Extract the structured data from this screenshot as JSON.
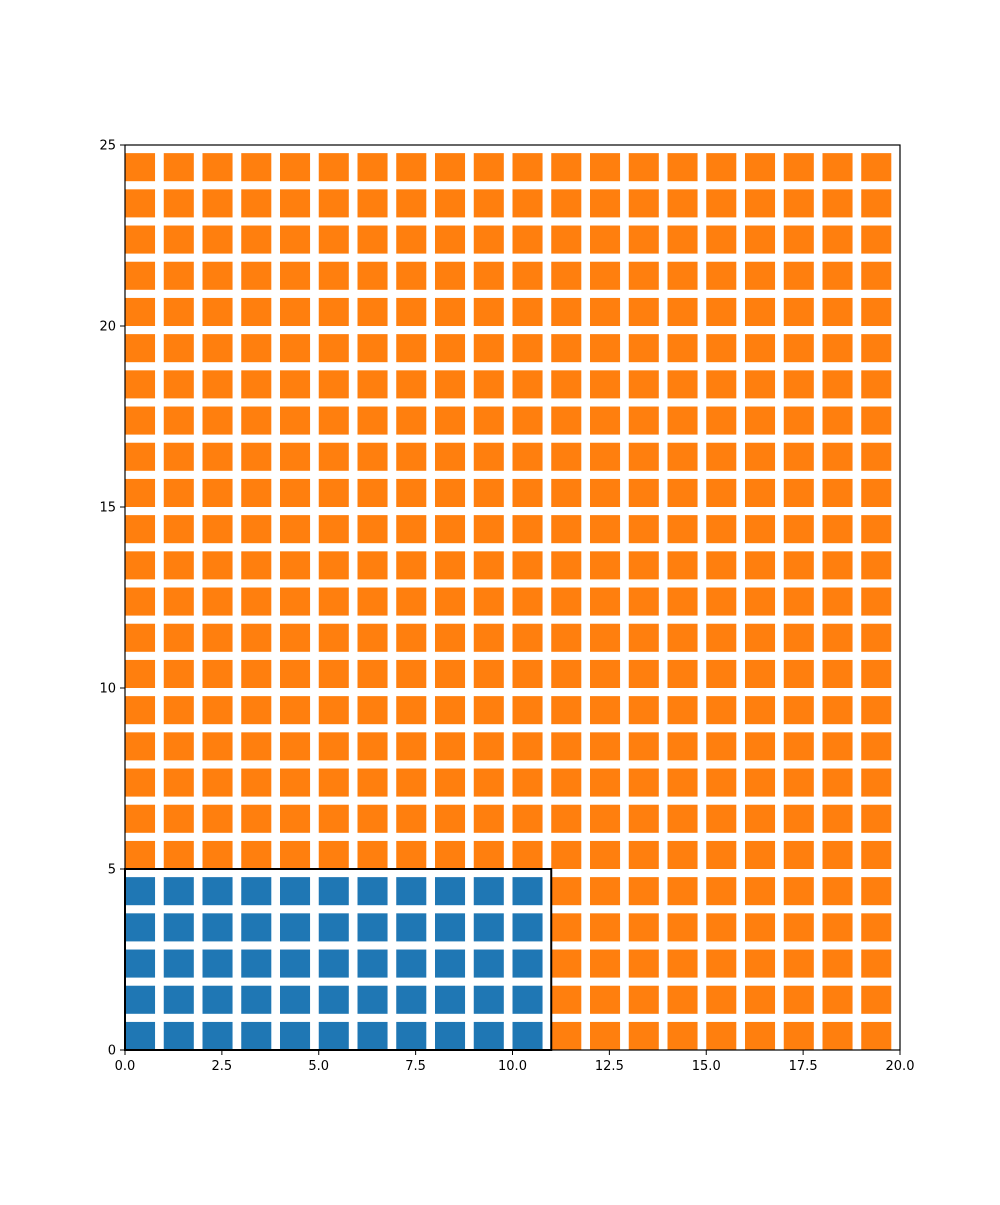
{
  "chart_data": {
    "type": "heatmap",
    "title": "",
    "xlabel": "",
    "ylabel": "",
    "xlim": [
      0,
      20
    ],
    "ylim": [
      0,
      25
    ],
    "xticks": [
      "0.0",
      "2.5",
      "5.0",
      "7.5",
      "10.0",
      "12.5",
      "15.0",
      "17.5",
      "20.0"
    ],
    "yticks": [
      "0",
      "5",
      "10",
      "15",
      "20",
      "25"
    ],
    "grid": false,
    "legend": "none",
    "columns": 20,
    "rows": 25,
    "cell_units": [
      0.7755,
      0.7755
    ],
    "series": [
      {
        "color": "#1f77b4",
        "region": {
          "x": [
            0,
            11
          ],
          "y": [
            0,
            5
          ]
        },
        "count": 55
      },
      {
        "color": "#ff7f0e",
        "region": "remaining cells",
        "count": 445
      }
    ],
    "highlight_box": {
      "x": [
        0,
        11
      ],
      "y": [
        0,
        5
      ],
      "color": "#000000"
    }
  }
}
